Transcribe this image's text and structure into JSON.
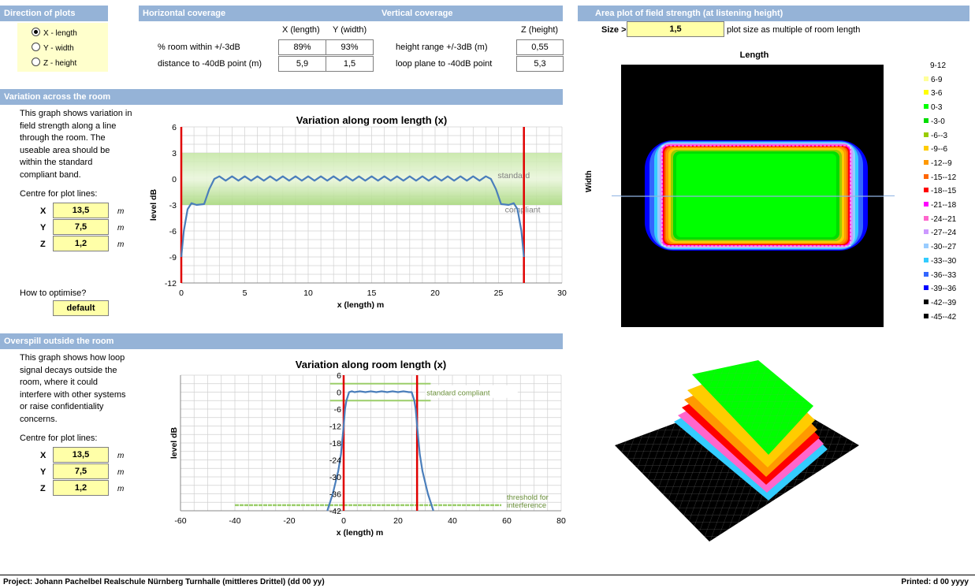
{
  "direction": {
    "title": "Direction of plots",
    "options": [
      {
        "label": "X - length",
        "selected": true
      },
      {
        "label": "Y - width",
        "selected": false
      },
      {
        "label": "Z - height",
        "selected": false
      }
    ]
  },
  "coverage": {
    "horizontal_title": "Horizontal coverage",
    "vertical_title": "Vertical coverage",
    "col_x": "X (length)",
    "col_y": "Y (width)",
    "col_z": "Z (height)",
    "row1_label": "% room within +/-3dB",
    "row1_x": "89%",
    "row1_y": "93%",
    "row1_v_label": "height range +/-3dB (m)",
    "row1_z": "0,55",
    "row2_label": "distance to -40dB point (m)",
    "row2_x": "5,9",
    "row2_y": "1,5",
    "row2_v_label": "loop plane to -40dB point",
    "row2_z": "5,3"
  },
  "area_plot": {
    "title": "Area plot of field strength (at listening height)",
    "size_label": "Size >",
    "size_value": "1,5",
    "size_note": "plot size as multiple of room length",
    "xlabel": "Length",
    "ylabel": "Width",
    "legend": [
      {
        "label": "9-12",
        "color": "#ffffff"
      },
      {
        "label": "6-9",
        "color": "#ffff99"
      },
      {
        "label": "3-6",
        "color": "#ffff00"
      },
      {
        "label": "0-3",
        "color": "#00ff00"
      },
      {
        "label": "-3-0",
        "color": "#00dd00"
      },
      {
        "label": "-6--3",
        "color": "#99cc00"
      },
      {
        "label": "-9--6",
        "color": "#ffcc00"
      },
      {
        "label": "-12--9",
        "color": "#ff9900"
      },
      {
        "label": "-15--12",
        "color": "#ff6600"
      },
      {
        "label": "-18--15",
        "color": "#ff0000"
      },
      {
        "label": "-21--18",
        "color": "#ff00ff"
      },
      {
        "label": "-24--21",
        "color": "#ff66cc"
      },
      {
        "label": "-27--24",
        "color": "#cc99ff"
      },
      {
        "label": "-30--27",
        "color": "#99ccff"
      },
      {
        "label": "-33--30",
        "color": "#33ccff"
      },
      {
        "label": "-36--33",
        "color": "#3366ff"
      },
      {
        "label": "-39--36",
        "color": "#0000ff"
      },
      {
        "label": "-42--39",
        "color": "#000000"
      },
      {
        "label": "-45--42",
        "color": "#000000"
      }
    ]
  },
  "variation": {
    "title": "Variation across the room",
    "description": [
      "This graph shows variation in",
      "field strength along a line",
      "through the room. The",
      "useable area should be",
      "within the standard",
      "compliant band."
    ],
    "centre_label": "Centre for plot lines:",
    "x_label": "X",
    "x_value": "13,5",
    "x_unit": "m",
    "y_label": "Y",
    "y_value": "7,5",
    "y_unit": "m",
    "z_label": "Z",
    "z_value": "1,2",
    "z_unit": "m",
    "optimise_label": "How to optimise?",
    "optimise_value": "default"
  },
  "overspill": {
    "title": "Overspill outside the room",
    "description": [
      "This graph shows how loop",
      "signal decays outside the",
      "room, where it could",
      "interfere with other systems",
      "or raise confidentiality",
      "concerns."
    ],
    "centre_label": "Centre for plot lines:",
    "x_label": "X",
    "x_value": "13,5",
    "x_unit": "m",
    "y_label": "Y",
    "y_value": "7,5",
    "y_unit": "m",
    "z_label": "Z",
    "z_value": "1,2",
    "z_unit": "m"
  },
  "chart_data": [
    {
      "type": "line",
      "title": "Variation along room length (x)",
      "xlabel": "x (length) m",
      "ylabel": "level dB",
      "xlim": [
        0,
        30
      ],
      "ylim": [
        -12,
        6
      ],
      "xticks": [
        "0",
        "5",
        "10",
        "15",
        "20",
        "25",
        "30"
      ],
      "yticks": [
        "-12",
        "-9",
        "-6",
        "-3",
        "0",
        "3",
        "6"
      ],
      "band": [
        -3,
        3
      ],
      "band_label": [
        "standard",
        "compliant"
      ],
      "walls": [
        0,
        27
      ],
      "series": [
        {
          "x": [
            0,
            0.2,
            0.5,
            0.8,
            1.2,
            1.8,
            2.2,
            2.6,
            3.0,
            3.5,
            4.0,
            4.5,
            5.0,
            5.5,
            6.0,
            6.5,
            7.0,
            7.5,
            8.0,
            8.5,
            9.0,
            9.5,
            10.0,
            10.5,
            11.0,
            11.5,
            12.0,
            12.5,
            13.0,
            13.5,
            14.0,
            14.5,
            15.0,
            15.5,
            16.0,
            16.5,
            17.0,
            17.5,
            18.0,
            18.5,
            19.0,
            19.5,
            20.0,
            20.5,
            21.0,
            21.5,
            22.0,
            22.5,
            23.0,
            23.5,
            24.0,
            24.4,
            24.8,
            25.2,
            25.8,
            26.2,
            26.5,
            26.8,
            27.0
          ],
          "y": [
            -9,
            -6,
            -3.5,
            -2.8,
            -3,
            -2.9,
            -1.2,
            0,
            0.3,
            -0.2,
            0.3,
            -0.2,
            0.3,
            -0.2,
            0.3,
            -0.2,
            0.3,
            -0.2,
            0.3,
            -0.2,
            0.3,
            -0.2,
            0.3,
            -0.2,
            0.3,
            -0.2,
            0.3,
            -0.2,
            0.3,
            -0.2,
            0.3,
            -0.2,
            0.3,
            -0.2,
            0.3,
            -0.2,
            0.3,
            -0.2,
            0.3,
            -0.2,
            0.3,
            -0.2,
            0.3,
            -0.2,
            0.3,
            -0.2,
            0.3,
            -0.2,
            0.3,
            -0.2,
            0.3,
            0,
            -1.2,
            -2.9,
            -3,
            -2.8,
            -3.5,
            -6,
            -9
          ]
        }
      ]
    },
    {
      "type": "line",
      "title": "Variation along room length (x)",
      "xlabel": "x (length) m",
      "ylabel": "level dB",
      "xlim": [
        -60,
        80
      ],
      "ylim": [
        -42,
        6
      ],
      "xticks": [
        "-60",
        "-40",
        "-20",
        "0",
        "20",
        "40",
        "60",
        "80"
      ],
      "yticks": [
        "-42",
        "-36",
        "-30",
        "-24",
        "-18",
        "-12",
        "-6",
        "0",
        "6"
      ],
      "compliant_levels": [
        3,
        -3
      ],
      "compliant_label": "standard compliant",
      "threshold": -40,
      "threshold_label": [
        "threshold for",
        "interference"
      ],
      "walls": [
        0,
        27
      ],
      "series": [
        {
          "x": [
            -6,
            -4,
            -2,
            -1,
            0,
            0.5,
            1,
            2,
            3,
            4,
            6,
            8,
            10,
            12,
            14,
            16,
            18,
            20,
            22,
            24,
            25,
            26,
            26.5,
            27,
            28,
            29,
            31,
            33
          ],
          "y": [
            -42,
            -36,
            -28,
            -22,
            -12,
            -6,
            -3,
            0,
            0.3,
            0,
            0.3,
            0,
            0.3,
            0,
            0.3,
            0,
            0.3,
            0,
            0.3,
            0,
            0,
            -3,
            -6,
            -12,
            -22,
            -28,
            -36,
            -42
          ]
        }
      ]
    }
  ],
  "footer": {
    "project": "Project: Johann Pachelbel Realschule Nürnberg Turnhalle (mittleres Drittel) (dd 00 yy)",
    "printed": "Printed: d 00 yyyy"
  }
}
